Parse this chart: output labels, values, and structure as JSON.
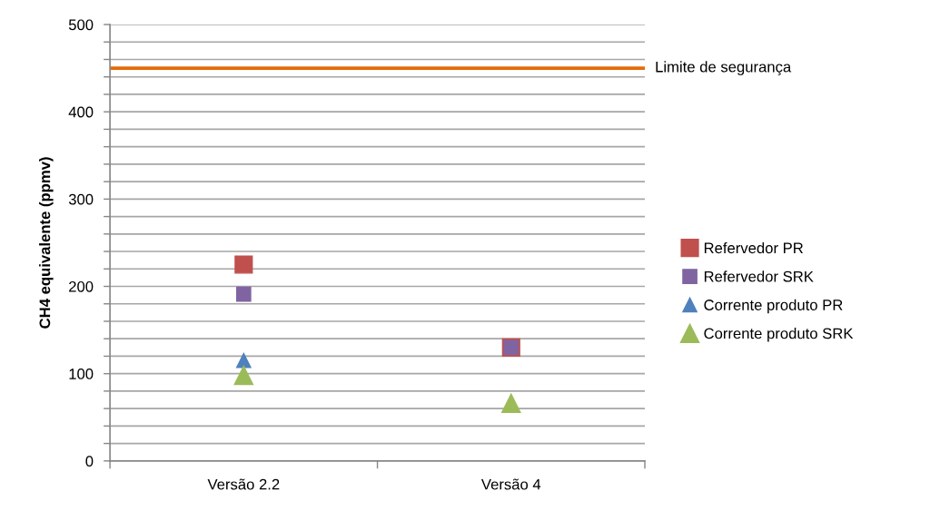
{
  "chart_data": {
    "type": "scatter",
    "ylabel": "CH4 equivalente (ppmv)",
    "categories": [
      "Versão 2.2",
      "Versão 4"
    ],
    "series": [
      {
        "name": "Refervedor PR",
        "color": "#c0504d",
        "marker": "square",
        "values": [
          225,
          130
        ]
      },
      {
        "name": "Refervedor SRK",
        "color": "#8064a2",
        "marker": "square",
        "values": [
          191,
          130
        ]
      },
      {
        "name": "Corrente produto PR",
        "color": "#4f81bd",
        "marker": "triangle",
        "values": [
          115,
          null
        ]
      },
      {
        "name": "Corrente produto SRK",
        "color": "#9bbb59",
        "marker": "triangle",
        "values": [
          98,
          66
        ]
      }
    ],
    "ylim": [
      0,
      500
    ],
    "yticks": [
      0,
      {
        "value": 20,
        "label": null
      },
      {
        "value": 40,
        "label": null
      },
      {
        "value": 60,
        "label": null
      },
      {
        "value": 80,
        "label": null
      },
      100,
      {
        "value": 120,
        "label": null
      },
      {
        "value": 140,
        "label": null
      },
      {
        "value": 160,
        "label": null
      },
      {
        "value": 180,
        "label": null
      },
      200,
      {
        "value": 220,
        "label": null
      },
      {
        "value": 240,
        "label": null
      },
      {
        "value": 260,
        "label": null
      },
      {
        "value": 280,
        "label": null
      },
      300,
      {
        "value": 320,
        "label": null
      },
      {
        "value": 340,
        "label": null
      },
      {
        "value": 360,
        "label": null
      },
      {
        "value": 380,
        "label": null
      },
      400,
      {
        "value": 420,
        "label": null
      },
      {
        "value": 440,
        "label": null
      },
      {
        "value": 460,
        "label": null
      },
      {
        "value": 480,
        "label": null
      },
      500
    ],
    "grid": "y",
    "legend": "right",
    "ref_lines": [
      {
        "axis": "y",
        "value": 450,
        "label": "Limite de segurança",
        "color": "#e46c0a"
      }
    ]
  }
}
